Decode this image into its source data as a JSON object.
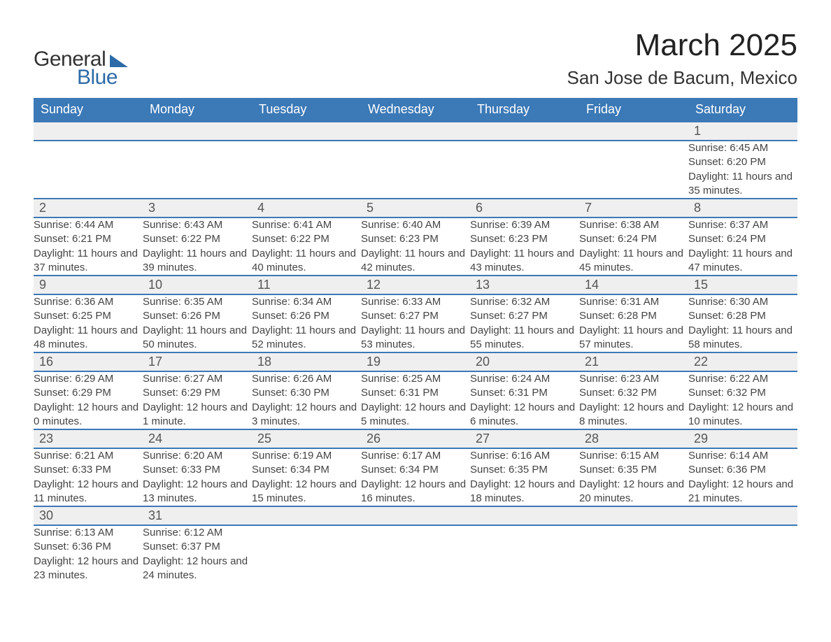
{
  "logo": {
    "part1": "General",
    "part2": "Blue"
  },
  "title": "March 2025",
  "location": "San Jose de Bacum, Mexico",
  "colors": {
    "header_bg": "#3b79b7",
    "header_text": "#ffffff",
    "daynum_bg": "#efefef",
    "row_border": "#3b79b7",
    "logo_blue": "#2d6ba8",
    "text": "#333333"
  },
  "fonts": {
    "title_size_pt": 33,
    "location_size_pt": 20,
    "header_size_pt": 14,
    "daynum_size_pt": 14,
    "detail_size_pt": 11
  },
  "day_headers": [
    "Sunday",
    "Monday",
    "Tuesday",
    "Wednesday",
    "Thursday",
    "Friday",
    "Saturday"
  ],
  "weeks": [
    [
      null,
      null,
      null,
      null,
      null,
      null,
      {
        "n": "1",
        "sunrise": "6:45 AM",
        "sunset": "6:20 PM",
        "daylight": "11 hours and 35 minutes."
      }
    ],
    [
      {
        "n": "2",
        "sunrise": "6:44 AM",
        "sunset": "6:21 PM",
        "daylight": "11 hours and 37 minutes."
      },
      {
        "n": "3",
        "sunrise": "6:43 AM",
        "sunset": "6:22 PM",
        "daylight": "11 hours and 39 minutes."
      },
      {
        "n": "4",
        "sunrise": "6:41 AM",
        "sunset": "6:22 PM",
        "daylight": "11 hours and 40 minutes."
      },
      {
        "n": "5",
        "sunrise": "6:40 AM",
        "sunset": "6:23 PM",
        "daylight": "11 hours and 42 minutes."
      },
      {
        "n": "6",
        "sunrise": "6:39 AM",
        "sunset": "6:23 PM",
        "daylight": "11 hours and 43 minutes."
      },
      {
        "n": "7",
        "sunrise": "6:38 AM",
        "sunset": "6:24 PM",
        "daylight": "11 hours and 45 minutes."
      },
      {
        "n": "8",
        "sunrise": "6:37 AM",
        "sunset": "6:24 PM",
        "daylight": "11 hours and 47 minutes."
      }
    ],
    [
      {
        "n": "9",
        "sunrise": "6:36 AM",
        "sunset": "6:25 PM",
        "daylight": "11 hours and 48 minutes."
      },
      {
        "n": "10",
        "sunrise": "6:35 AM",
        "sunset": "6:26 PM",
        "daylight": "11 hours and 50 minutes."
      },
      {
        "n": "11",
        "sunrise": "6:34 AM",
        "sunset": "6:26 PM",
        "daylight": "11 hours and 52 minutes."
      },
      {
        "n": "12",
        "sunrise": "6:33 AM",
        "sunset": "6:27 PM",
        "daylight": "11 hours and 53 minutes."
      },
      {
        "n": "13",
        "sunrise": "6:32 AM",
        "sunset": "6:27 PM",
        "daylight": "11 hours and 55 minutes."
      },
      {
        "n": "14",
        "sunrise": "6:31 AM",
        "sunset": "6:28 PM",
        "daylight": "11 hours and 57 minutes."
      },
      {
        "n": "15",
        "sunrise": "6:30 AM",
        "sunset": "6:28 PM",
        "daylight": "11 hours and 58 minutes."
      }
    ],
    [
      {
        "n": "16",
        "sunrise": "6:29 AM",
        "sunset": "6:29 PM",
        "daylight": "12 hours and 0 minutes."
      },
      {
        "n": "17",
        "sunrise": "6:27 AM",
        "sunset": "6:29 PM",
        "daylight": "12 hours and 1 minute."
      },
      {
        "n": "18",
        "sunrise": "6:26 AM",
        "sunset": "6:30 PM",
        "daylight": "12 hours and 3 minutes."
      },
      {
        "n": "19",
        "sunrise": "6:25 AM",
        "sunset": "6:31 PM",
        "daylight": "12 hours and 5 minutes."
      },
      {
        "n": "20",
        "sunrise": "6:24 AM",
        "sunset": "6:31 PM",
        "daylight": "12 hours and 6 minutes."
      },
      {
        "n": "21",
        "sunrise": "6:23 AM",
        "sunset": "6:32 PM",
        "daylight": "12 hours and 8 minutes."
      },
      {
        "n": "22",
        "sunrise": "6:22 AM",
        "sunset": "6:32 PM",
        "daylight": "12 hours and 10 minutes."
      }
    ],
    [
      {
        "n": "23",
        "sunrise": "6:21 AM",
        "sunset": "6:33 PM",
        "daylight": "12 hours and 11 minutes."
      },
      {
        "n": "24",
        "sunrise": "6:20 AM",
        "sunset": "6:33 PM",
        "daylight": "12 hours and 13 minutes."
      },
      {
        "n": "25",
        "sunrise": "6:19 AM",
        "sunset": "6:34 PM",
        "daylight": "12 hours and 15 minutes."
      },
      {
        "n": "26",
        "sunrise": "6:17 AM",
        "sunset": "6:34 PM",
        "daylight": "12 hours and 16 minutes."
      },
      {
        "n": "27",
        "sunrise": "6:16 AM",
        "sunset": "6:35 PM",
        "daylight": "12 hours and 18 minutes."
      },
      {
        "n": "28",
        "sunrise": "6:15 AM",
        "sunset": "6:35 PM",
        "daylight": "12 hours and 20 minutes."
      },
      {
        "n": "29",
        "sunrise": "6:14 AM",
        "sunset": "6:36 PM",
        "daylight": "12 hours and 21 minutes."
      }
    ],
    [
      {
        "n": "30",
        "sunrise": "6:13 AM",
        "sunset": "6:36 PM",
        "daylight": "12 hours and 23 minutes."
      },
      {
        "n": "31",
        "sunrise": "6:12 AM",
        "sunset": "6:37 PM",
        "daylight": "12 hours and 24 minutes."
      },
      null,
      null,
      null,
      null,
      null
    ]
  ],
  "labels": {
    "sunrise": "Sunrise: ",
    "sunset": "Sunset: ",
    "daylight": "Daylight: "
  }
}
